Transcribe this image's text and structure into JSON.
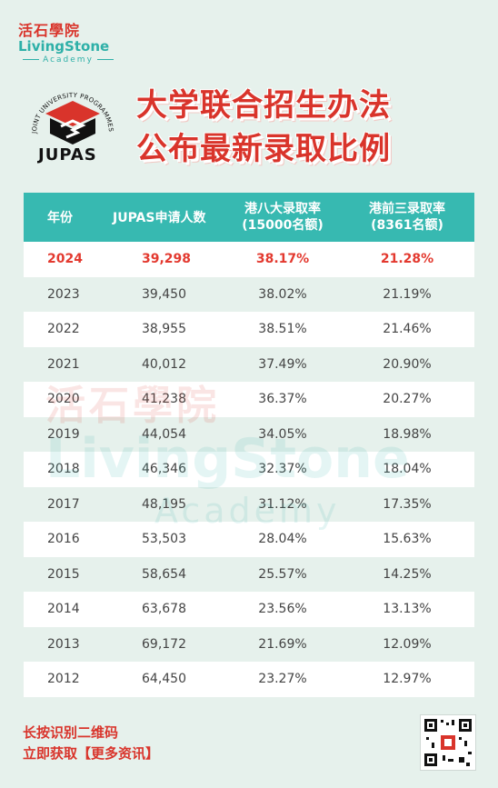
{
  "brand": {
    "cn": "活石學院",
    "en": "LivingStone",
    "sub": "Academy"
  },
  "logo": {
    "text": "JUPAS",
    "ring_text": "JOINT UNIVERSITY PROGRAMMES ADMISSIONS SYSTEM"
  },
  "title": {
    "line1": "大学联合招生办法",
    "line2": "公布最新录取比例"
  },
  "table": {
    "headers": [
      "年份",
      "JUPAS申请人数",
      "港八大录取率",
      "(15000名额)",
      "港前三录取率",
      "(8361名额)"
    ],
    "rows": [
      {
        "year": "2024",
        "applicants": "39,298",
        "top8": "38.17%",
        "top3": "21.28%",
        "highlight": true
      },
      {
        "year": "2023",
        "applicants": "39,450",
        "top8": "38.02%",
        "top3": "21.19%"
      },
      {
        "year": "2022",
        "applicants": "38,955",
        "top8": "38.51%",
        "top3": "21.46%"
      },
      {
        "year": "2021",
        "applicants": "40,012",
        "top8": "37.49%",
        "top3": "20.90%"
      },
      {
        "year": "2020",
        "applicants": "41,238",
        "top8": "36.37%",
        "top3": "20.27%"
      },
      {
        "year": "2019",
        "applicants": "44,054",
        "top8": "34.05%",
        "top3": "18.98%"
      },
      {
        "year": "2018",
        "applicants": "46,346",
        "top8": "32.37%",
        "top3": "18.04%"
      },
      {
        "year": "2017",
        "applicants": "48,195",
        "top8": "31.12%",
        "top3": "17.35%"
      },
      {
        "year": "2016",
        "applicants": "53,503",
        "top8": "28.04%",
        "top3": "15.63%"
      },
      {
        "year": "2015",
        "applicants": "58,654",
        "top8": "25.57%",
        "top3": "14.25%"
      },
      {
        "year": "2014",
        "applicants": "63,678",
        "top8": "23.56%",
        "top3": "13.13%"
      },
      {
        "year": "2013",
        "applicants": "69,172",
        "top8": "21.69%",
        "top3": "12.09%"
      },
      {
        "year": "2012",
        "applicants": "64,450",
        "top8": "23.27%",
        "top3": "12.97%"
      }
    ]
  },
  "cta": {
    "line1": "长按识别二维码",
    "line2": "立即获取【更多资讯】"
  },
  "colors": {
    "accent_red": "#d9342b",
    "teal": "#37b9b1",
    "background": "#e6f1ec"
  }
}
